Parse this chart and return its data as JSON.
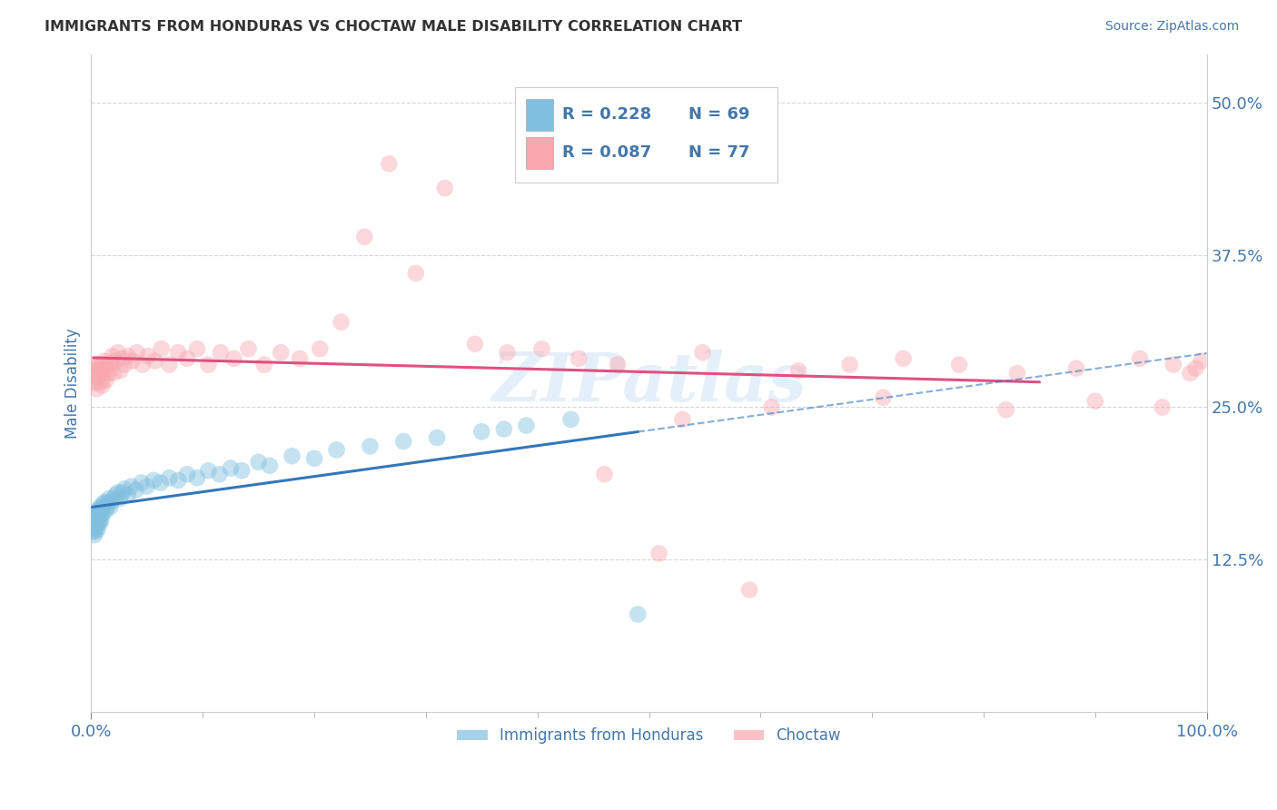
{
  "title": "IMMIGRANTS FROM HONDURAS VS CHOCTAW MALE DISABILITY CORRELATION CHART",
  "source_text": "Source: ZipAtlas.com",
  "ylabel": "Male Disability",
  "xlim": [
    0.0,
    1.0
  ],
  "ylim": [
    0.0,
    0.54
  ],
  "yticks": [
    0.125,
    0.25,
    0.375,
    0.5
  ],
  "ytick_labels": [
    "12.5%",
    "25.0%",
    "37.5%",
    "50.0%"
  ],
  "xticks": [
    0.0,
    1.0
  ],
  "xtick_labels": [
    "0.0%",
    "100.0%"
  ],
  "legend_R1": "R = 0.228",
  "legend_N1": "N = 69",
  "legend_R2": "R = 0.087",
  "legend_N2": "N = 77",
  "series1_label": "Immigrants from Honduras",
  "series2_label": "Choctaw",
  "series1_color": "#7fbfdf",
  "series2_color": "#f9a8b0",
  "line1_color": "#3377bb",
  "line2_color": "#e05080",
  "watermark": "ZIPatlas",
  "background_color": "#ffffff",
  "grid_color": "#cccccc",
  "title_color": "#333333",
  "axis_label_color": "#4477aa",
  "tick_label_color": "#4477aa",
  "series1_x": [
    0.001,
    0.001,
    0.002,
    0.002,
    0.002,
    0.003,
    0.003,
    0.003,
    0.003,
    0.004,
    0.004,
    0.004,
    0.005,
    0.005,
    0.005,
    0.006,
    0.006,
    0.006,
    0.007,
    0.007,
    0.008,
    0.008,
    0.008,
    0.009,
    0.009,
    0.01,
    0.01,
    0.011,
    0.012,
    0.013,
    0.014,
    0.015,
    0.016,
    0.017,
    0.018,
    0.02,
    0.022,
    0.024,
    0.026,
    0.028,
    0.03,
    0.033,
    0.036,
    0.04,
    0.045,
    0.05,
    0.056,
    0.062,
    0.07,
    0.078,
    0.086,
    0.095,
    0.105,
    0.115,
    0.125,
    0.135,
    0.15,
    0.16,
    0.18,
    0.2,
    0.22,
    0.25,
    0.28,
    0.31,
    0.35,
    0.39,
    0.43,
    0.49,
    0.37
  ],
  "series1_y": [
    0.16,
    0.155,
    0.158,
    0.152,
    0.148,
    0.162,
    0.155,
    0.15,
    0.145,
    0.158,
    0.152,
    0.148,
    0.165,
    0.158,
    0.153,
    0.162,
    0.155,
    0.15,
    0.165,
    0.158,
    0.168,
    0.162,
    0.155,
    0.165,
    0.158,
    0.17,
    0.162,
    0.168,
    0.172,
    0.165,
    0.168,
    0.172,
    0.175,
    0.168,
    0.172,
    0.175,
    0.178,
    0.18,
    0.175,
    0.18,
    0.183,
    0.178,
    0.185,
    0.182,
    0.188,
    0.185,
    0.19,
    0.188,
    0.192,
    0.19,
    0.195,
    0.192,
    0.198,
    0.195,
    0.2,
    0.198,
    0.205,
    0.202,
    0.21,
    0.208,
    0.215,
    0.218,
    0.222,
    0.225,
    0.23,
    0.235,
    0.24,
    0.08,
    0.232
  ],
  "series2_x": [
    0.002,
    0.003,
    0.004,
    0.005,
    0.005,
    0.006,
    0.007,
    0.007,
    0.008,
    0.009,
    0.009,
    0.01,
    0.01,
    0.011,
    0.012,
    0.013,
    0.014,
    0.015,
    0.016,
    0.018,
    0.019,
    0.02,
    0.022,
    0.024,
    0.026,
    0.028,
    0.03,
    0.033,
    0.037,
    0.041,
    0.046,
    0.051,
    0.057,
    0.063,
    0.07,
    0.078,
    0.086,
    0.095,
    0.105,
    0.116,
    0.128,
    0.141,
    0.155,
    0.17,
    0.187,
    0.205,
    0.224,
    0.245,
    0.267,
    0.291,
    0.317,
    0.344,
    0.373,
    0.404,
    0.437,
    0.472,
    0.509,
    0.548,
    0.59,
    0.634,
    0.68,
    0.728,
    0.778,
    0.83,
    0.883,
    0.94,
    0.97,
    0.985,
    0.99,
    0.995,
    0.46,
    0.53,
    0.61,
    0.71,
    0.82,
    0.9,
    0.96
  ],
  "series2_y": [
    0.28,
    0.27,
    0.285,
    0.275,
    0.265,
    0.278,
    0.285,
    0.27,
    0.28,
    0.272,
    0.285,
    0.268,
    0.278,
    0.282,
    0.288,
    0.272,
    0.28,
    0.285,
    0.278,
    0.285,
    0.292,
    0.278,
    0.288,
    0.295,
    0.28,
    0.29,
    0.285,
    0.292,
    0.288,
    0.295,
    0.285,
    0.292,
    0.288,
    0.298,
    0.285,
    0.295,
    0.29,
    0.298,
    0.285,
    0.295,
    0.29,
    0.298,
    0.285,
    0.295,
    0.29,
    0.298,
    0.32,
    0.39,
    0.45,
    0.36,
    0.43,
    0.302,
    0.295,
    0.298,
    0.29,
    0.285,
    0.13,
    0.295,
    0.1,
    0.28,
    0.285,
    0.29,
    0.285,
    0.278,
    0.282,
    0.29,
    0.285,
    0.278,
    0.282,
    0.288,
    0.195,
    0.24,
    0.25,
    0.258,
    0.248,
    0.255,
    0.25
  ]
}
